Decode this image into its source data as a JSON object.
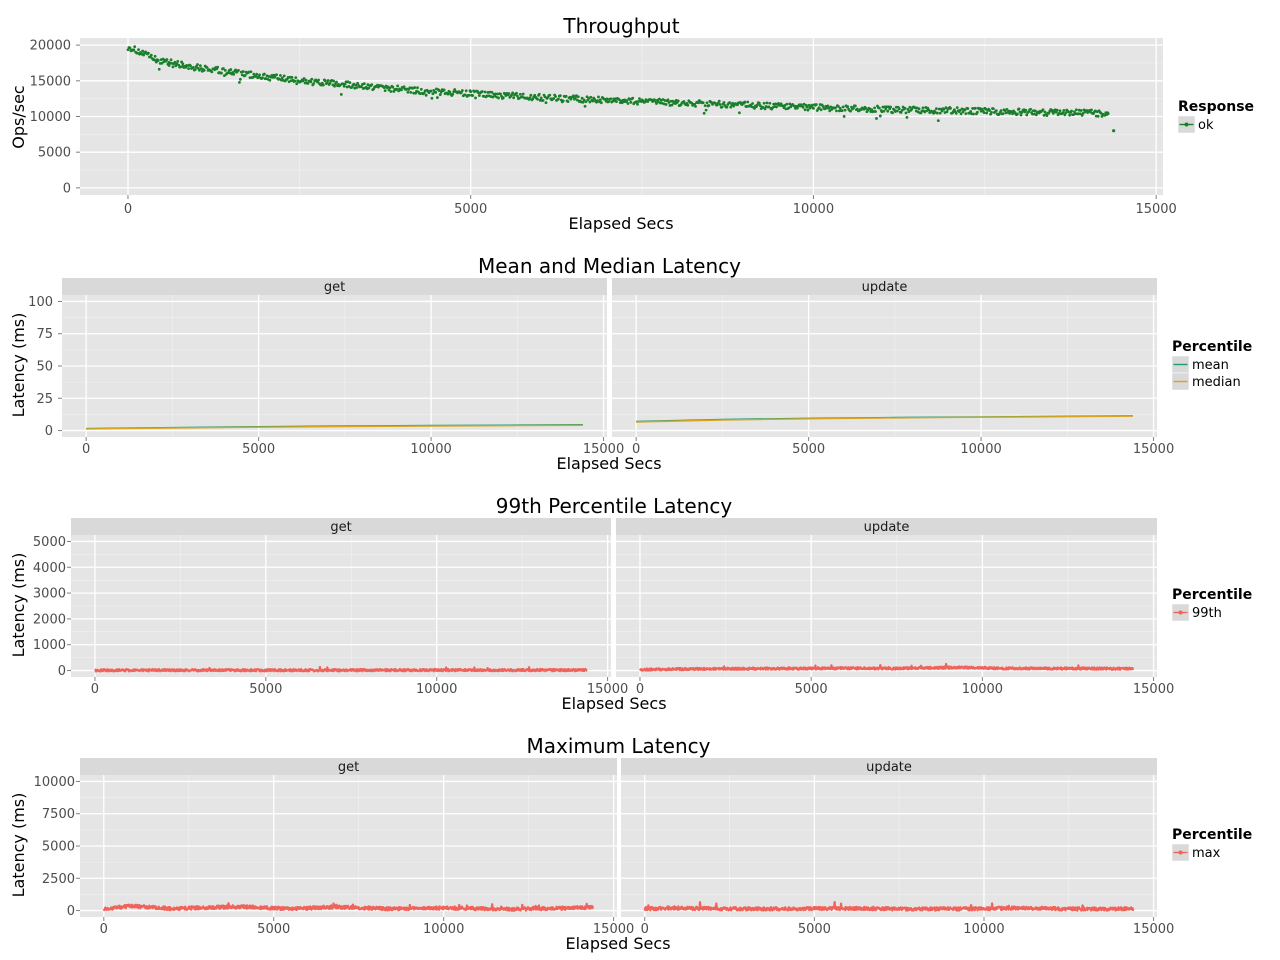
{
  "chart_data": [
    {
      "type": "scatter",
      "title": "Throughput",
      "xlabel": "Elapsed Secs",
      "ylabel": "Ops/sec",
      "xlim": [
        -700,
        15100
      ],
      "ylim": [
        -1000,
        21000
      ],
      "xticks": [
        0,
        5000,
        10000,
        15000
      ],
      "xtick_labels": [
        "0",
        "5000",
        "10000",
        "15000"
      ],
      "yticks": [
        0,
        5000,
        10000,
        15000,
        20000
      ],
      "ytick_labels": [
        "0",
        "5000",
        "10000",
        "15000",
        "20000"
      ],
      "grid": true,
      "facets": [],
      "legend": {
        "title": "Response",
        "placement": "right",
        "entries": [
          {
            "name": "ok",
            "color": "#1a7f2a"
          }
        ]
      },
      "series": [
        {
          "name": "ok",
          "color": "#1a7f2a",
          "x": [
            0,
            200,
            400,
            600,
            800,
            1000,
            1500,
            2000,
            2500,
            3000,
            3500,
            4000,
            4500,
            5000,
            5500,
            6000,
            6500,
            7000,
            7500,
            8000,
            8500,
            9000,
            9500,
            10000,
            10500,
            11000,
            11500,
            12000,
            12500,
            13000,
            13500,
            14000,
            14300,
            14380
          ],
          "y": [
            19800,
            18900,
            18000,
            17600,
            17200,
            16900,
            16200,
            15600,
            15000,
            14600,
            14200,
            13800,
            13500,
            13200,
            12900,
            12700,
            12500,
            12300,
            12100,
            11900,
            11800,
            11600,
            11450,
            11300,
            11150,
            11000,
            10900,
            10850,
            10750,
            10650,
            10550,
            10500,
            10400,
            8000
          ]
        }
      ]
    },
    {
      "type": "line",
      "title": "Mean and Median Latency",
      "xlabel": "Elapsed Secs",
      "ylabel": "Latency (ms)",
      "xlim": [
        -700,
        15100
      ],
      "ylim": [
        -5,
        105
      ],
      "xticks": [
        0,
        5000,
        10000,
        15000
      ],
      "xtick_labels": [
        "0",
        "5000",
        "10000",
        "15000"
      ],
      "yticks": [
        0,
        25,
        50,
        75,
        100
      ],
      "ytick_labels": [
        "0",
        "25",
        "50",
        "75",
        "100"
      ],
      "grid": true,
      "facets": [
        "get",
        "update"
      ],
      "legend": {
        "title": "Percentile",
        "placement": "right",
        "entries": [
          {
            "name": "mean",
            "color": "#1b9e77"
          },
          {
            "name": "median",
            "color": "#d9a520"
          }
        ]
      },
      "series": [
        {
          "name": "mean",
          "facet": "get",
          "color": "#1b9e77",
          "x": [
            0,
            2500,
            5000,
            7500,
            10000,
            12500,
            14400
          ],
          "y": [
            1.5,
            2.3,
            3.0,
            3.5,
            3.9,
            4.2,
            4.5
          ]
        },
        {
          "name": "median",
          "facet": "get",
          "color": "#d9a520",
          "x": [
            0,
            2500,
            5000,
            7500,
            10000,
            12500,
            14400
          ],
          "y": [
            1.3,
            2.0,
            2.6,
            3.1,
            3.5,
            3.8,
            4.1
          ]
        },
        {
          "name": "mean",
          "facet": "update",
          "color": "#1b9e77",
          "x": [
            0,
            2500,
            5000,
            7500,
            10000,
            12500,
            14400
          ],
          "y": [
            7.0,
            8.6,
            9.5,
            10.1,
            10.6,
            11.0,
            11.4
          ]
        },
        {
          "name": "median",
          "facet": "update",
          "color": "#d9a520",
          "x": [
            0,
            2500,
            5000,
            7500,
            10000,
            12500,
            14400
          ],
          "y": [
            6.6,
            8.2,
            9.1,
            9.8,
            10.3,
            10.7,
            11.1
          ]
        }
      ]
    },
    {
      "type": "line",
      "title": "99th Percentile Latency",
      "xlabel": "Elapsed Secs",
      "ylabel": "Latency (ms)",
      "xlim": [
        -700,
        15100
      ],
      "ylim": [
        -250,
        5250
      ],
      "xticks": [
        0,
        5000,
        10000,
        15000
      ],
      "xtick_labels": [
        "0",
        "5000",
        "10000",
        "15000"
      ],
      "yticks": [
        0,
        1000,
        2000,
        3000,
        4000,
        5000
      ],
      "ytick_labels": [
        "0",
        "1000",
        "2000",
        "3000",
        "4000",
        "5000"
      ],
      "grid": true,
      "facets": [
        "get",
        "update"
      ],
      "legend": {
        "title": "Percentile",
        "placement": "right",
        "entries": [
          {
            "name": "99th",
            "color": "#f0635b"
          }
        ]
      },
      "series": [
        {
          "name": "99th",
          "facet": "get",
          "color": "#f0635b",
          "x": [
            0,
            2500,
            5000,
            7500,
            10000,
            12500,
            14400
          ],
          "y": [
            10,
            12,
            14,
            15,
            16,
            17,
            18
          ]
        },
        {
          "name": "99th",
          "facet": "update",
          "color": "#f0635b",
          "x": [
            0,
            1500,
            3000,
            4500,
            6000,
            7500,
            9300,
            10500,
            12000,
            13500,
            14400
          ],
          "y": [
            40,
            60,
            70,
            75,
            90,
            80,
            120,
            85,
            80,
            75,
            70
          ]
        }
      ]
    },
    {
      "type": "line",
      "title": "Maximum Latency",
      "xlabel": "Elapsed Secs",
      "ylabel": "Latency (ms)",
      "xlim": [
        -700,
        15100
      ],
      "ylim": [
        -500,
        10500
      ],
      "xticks": [
        0,
        5000,
        10000,
        15000
      ],
      "xtick_labels": [
        "0",
        "5000",
        "10000",
        "15000"
      ],
      "yticks": [
        0,
        2500,
        5000,
        7500,
        10000
      ],
      "ytick_labels": [
        "0",
        "2500",
        "5000",
        "7500",
        "10000"
      ],
      "grid": true,
      "facets": [
        "get",
        "update"
      ],
      "legend": {
        "title": "Percentile",
        "placement": "right",
        "entries": [
          {
            "name": "max",
            "color": "#f0635b"
          }
        ]
      },
      "series": [
        {
          "name": "max",
          "facet": "get",
          "color": "#f0635b",
          "x": [
            0,
            800,
            2000,
            4000,
            5500,
            6800,
            8500,
            10000,
            12000,
            13800,
            14400
          ],
          "y": [
            100,
            350,
            150,
            300,
            120,
            280,
            130,
            200,
            110,
            200,
            250
          ]
        },
        {
          "name": "max",
          "facet": "update",
          "color": "#f0635b",
          "x": [
            0,
            800,
            2000,
            4000,
            6000,
            8000,
            10000,
            11000,
            12500,
            14400
          ],
          "y": [
            120,
            200,
            150,
            130,
            160,
            120,
            140,
            200,
            120,
            130
          ]
        }
      ]
    }
  ]
}
